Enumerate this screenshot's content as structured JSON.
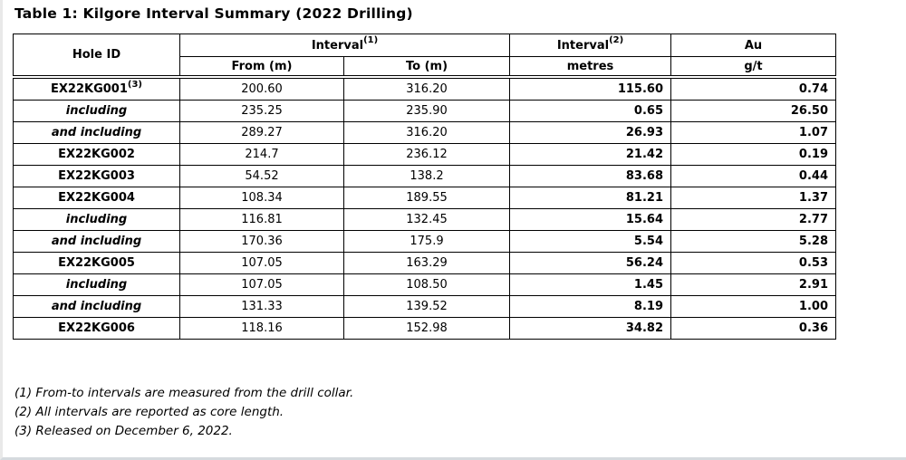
{
  "page": {
    "title": "Table 1: Kilgore Interval Summary (2022 Drilling)"
  },
  "colors": {
    "table_border": "#000000",
    "page_frame_left": "#e9e9e9",
    "page_frame_bottom": "#d5dade",
    "text": "#000000",
    "background": "#ffffff"
  },
  "table": {
    "header": {
      "hole_id": "Hole ID",
      "interval1_label": "Interval",
      "interval1_sup": "(1)",
      "from_label": "From (m)",
      "to_label": "To (m)",
      "interval2_label": "Interval",
      "interval2_sup": "(2)",
      "metres_label": "metres",
      "au_label": "Au",
      "gt_label": "g/t"
    },
    "rows": [
      {
        "hole": "EX22KG001",
        "hole_sup": "(3)",
        "row_type": "hole",
        "from": "200.60",
        "to": "316.20",
        "metres": "115.60",
        "au": "0.74"
      },
      {
        "hole": "including",
        "row_type": "including",
        "from": "235.25",
        "to": "235.90",
        "metres": "0.65",
        "au": "26.50"
      },
      {
        "hole": "and including",
        "row_type": "including",
        "from": "289.27",
        "to": "316.20",
        "metres": "26.93",
        "au": "1.07"
      },
      {
        "hole": "EX22KG002",
        "row_type": "hole",
        "from": "214.7",
        "to": "236.12",
        "metres": "21.42",
        "au": "0.19"
      },
      {
        "hole": "EX22KG003",
        "row_type": "hole",
        "from": "54.52",
        "to": "138.2",
        "metres": "83.68",
        "au": "0.44"
      },
      {
        "hole": "EX22KG004",
        "row_type": "hole",
        "from": "108.34",
        "to": "189.55",
        "metres": "81.21",
        "au": "1.37"
      },
      {
        "hole": "including",
        "row_type": "including",
        "from": "116.81",
        "to": "132.45",
        "metres": "15.64",
        "au": "2.77"
      },
      {
        "hole": "and including",
        "row_type": "including",
        "from": "170.36",
        "to": "175.9",
        "metres": "5.54",
        "au": "5.28"
      },
      {
        "hole": "EX22KG005",
        "row_type": "hole",
        "from": "107.05",
        "to": "163.29",
        "metres": "56.24",
        "au": "0.53"
      },
      {
        "hole": "including",
        "row_type": "including",
        "from": "107.05",
        "to": "108.50",
        "metres": "1.45",
        "au": "2.91"
      },
      {
        "hole": "and including",
        "row_type": "including",
        "from": "131.33",
        "to": "139.52",
        "metres": "8.19",
        "au": "1.00"
      },
      {
        "hole": "EX22KG006",
        "row_type": "hole",
        "from": "118.16",
        "to": "152.98",
        "metres": "34.82",
        "au": "0.36"
      }
    ]
  },
  "footnotes": [
    "(1) From-to intervals are measured from the drill collar.",
    "(2) All intervals are reported as core length.",
    "(3) Released on December 6, 2022."
  ]
}
